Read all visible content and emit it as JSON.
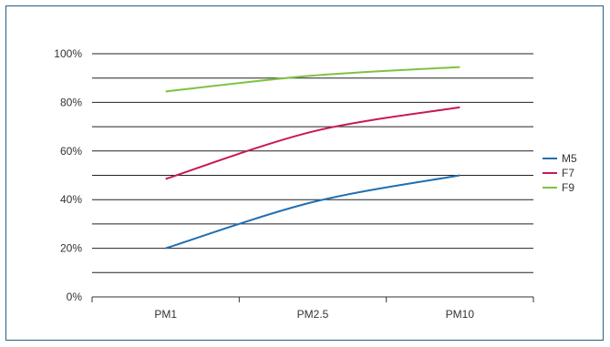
{
  "chart_data": {
    "type": "line",
    "categories": [
      "PM1",
      "PM2.5",
      "PM10"
    ],
    "ylim": [
      0,
      100
    ],
    "y_ticks": [
      "0%",
      "20%",
      "40%",
      "60%",
      "80%",
      "100%"
    ],
    "grid": true,
    "legend_position": "right",
    "series": [
      {
        "name": "M5",
        "color": "#1f6fb2",
        "values": [
          20,
          39,
          50
        ]
      },
      {
        "name": "F7",
        "color": "#c8185a",
        "values": [
          48.5,
          68,
          78
        ]
      },
      {
        "name": "F9",
        "color": "#7dc242",
        "values": [
          84.5,
          91,
          94.5
        ]
      }
    ]
  }
}
